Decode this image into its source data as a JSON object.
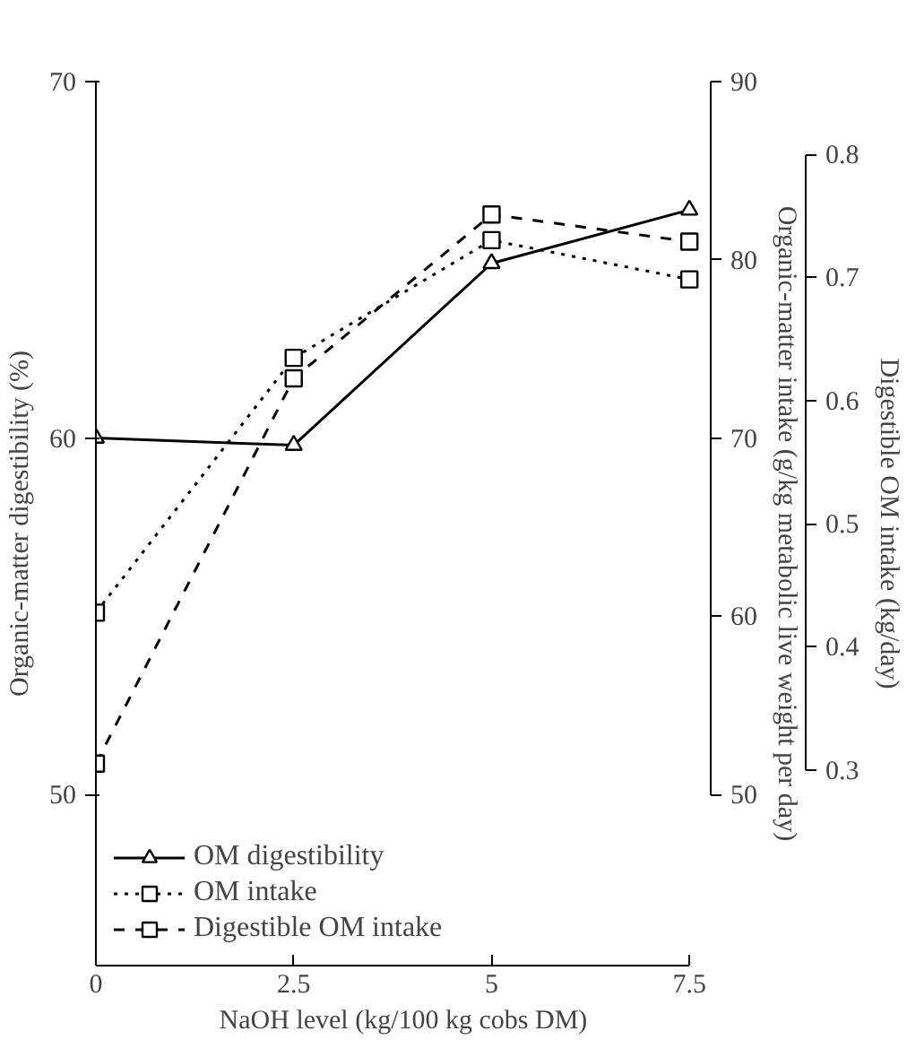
{
  "chart_data": {
    "type": "line",
    "xlabel": "NaOH level (kg/100 kg cobs DM)",
    "ylabel": "Organic-matter digestibility (%)",
    "y2label": "Organic-matter intake (g/kg metabolic live weight per day)",
    "y3label": "Digestible OM intake (kg/day)",
    "x": [
      0,
      2.5,
      5,
      7.5
    ],
    "xlim": [
      0,
      7.77
    ],
    "xticks": [
      0,
      2.5,
      5,
      7.5
    ],
    "ylim": [
      45.2,
      70
    ],
    "yticks": [
      50,
      60,
      70
    ],
    "y2lim": [
      40.4,
      90
    ],
    "y2ticks": [
      50,
      60,
      70,
      80,
      90
    ],
    "y3lim": [
      0.141,
      0.859
    ],
    "y3ticks": [
      0.3,
      0.4,
      0.5,
      0.6,
      0.7,
      0.8
    ],
    "grid": false,
    "legend": "bottom left",
    "series": [
      {
        "name": "OM digestibility",
        "color": "#000000",
        "values": [
          60.0,
          59.8,
          64.9,
          66.4
        ],
        "marker": "triangle",
        "line_style": "solid"
      },
      {
        "name": "OM intake",
        "color": "#000000",
        "values": [
          60.2,
          74.5,
          81.1,
          78.9
        ],
        "marker": "square",
        "line_style": "dotted",
        "axis": "y2"
      },
      {
        "name": "Digestible OM intake",
        "color": "#000000",
        "values": [
          0.305,
          0.618,
          0.751,
          0.729
        ],
        "marker": "square",
        "line_style": "dashed",
        "axis": "y3"
      }
    ]
  }
}
